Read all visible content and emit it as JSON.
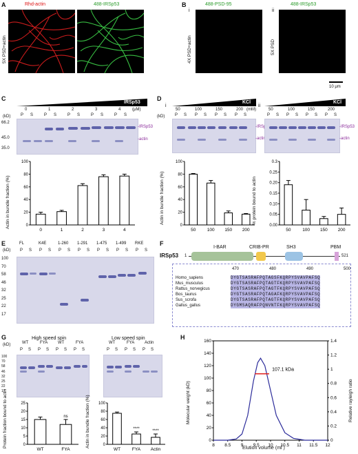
{
  "panels": {
    "A": {
      "letter": "A",
      "label_red": "Rhd-actin",
      "label_green": "488-IRSp53",
      "side": "5X PSD+actin"
    },
    "B": {
      "letter": "B",
      "i": "i",
      "ii": "ii",
      "label_i": "488-PSD-95",
      "label_ii": "488-IRSp53",
      "side_i": "4X PSD+actin",
      "side_ii": "5X PSD",
      "scale": "10 μm"
    },
    "C": {
      "letter": "C",
      "kd": "(kD)",
      "markers": [
        "66.2",
        "45.0",
        "35.0"
      ],
      "conc": [
        "0",
        "1",
        "2",
        "3",
        "4"
      ],
      "unit": "(μM)",
      "wedge": "IRSp53",
      "ps": [
        "P",
        "S"
      ],
      "band_top": "-IRSp53",
      "band_bot": "-actin",
      "ylabel": "Actin in bundle fraction (%)",
      "yticks": [
        "0",
        "20",
        "40",
        "60",
        "80",
        "100"
      ]
    },
    "D": {
      "letter": "D",
      "i": "i",
      "ii": "ii",
      "kd": "(kD)",
      "markers": [
        "66.2",
        "45.0",
        "35.0"
      ],
      "conc": [
        "50",
        "100",
        "150",
        "200"
      ],
      "unit": "(mM)",
      "wedge": "KCl",
      "band_top": "-IRSp53",
      "band_bot": "-actin",
      "ylabel_i": "Actin in bundle fraction (%)",
      "ylabel_ii": "% protein bound to actin",
      "yticks_i": [
        "0",
        "20",
        "40",
        "60",
        "80",
        "100"
      ],
      "yticks_ii": [
        "0.00",
        "0.05",
        "0.10",
        "0.15",
        "0.20",
        "0.25",
        "0.3"
      ],
      "xcats": [
        "50",
        "100",
        "150",
        "200"
      ]
    },
    "E": {
      "letter": "E",
      "kd": "(kD)",
      "markers": [
        "100",
        "70",
        "58",
        "46",
        "32",
        "25",
        "22",
        "17"
      ],
      "lanes": [
        "FL",
        "K4E",
        "1-260",
        "1-291",
        "1-475",
        "1-499",
        "RKE"
      ]
    },
    "F": {
      "letter": "F",
      "protein": "IRSp53",
      "domains": [
        "I-BAR",
        "CRIB-PR",
        "SH3",
        "PBM"
      ],
      "start": "1",
      "end": "521",
      "positions": [
        "470",
        "480",
        "490",
        "500"
      ],
      "species": [
        "Homo_sapiens",
        "Mus_musculus",
        "Rattus_norvegicus",
        "Bos_taurus",
        "Sus_scrofa",
        "Gallus_gallus"
      ],
      "seqs": [
        "DYGTSASRAFPQTAGSFKQRPYSVAVPAFSQ",
        "DYGTSASRAFPQTAGTFKQRPYSVAVPAFSQ",
        "DYGTSASRAFPQTAGTFKQRPYSVAVPAFSQ",
        "DYGTSASRAFPQTAGAFKQRPYSVAVPAFSQ",
        "DYGTSASRAFPQTAGTFKQRPYSVAVPAFSQ",
        "DYGMSAQRAFPQNVNTFKQRPYSVAVPAFSQ"
      ]
    },
    "G": {
      "letter": "G",
      "high": "High speed spin",
      "low": "Low speed spin",
      "kd": "(kD)",
      "markers": [
        "100",
        "70",
        "58",
        "46",
        "32",
        "25",
        "22",
        "17"
      ],
      "high_lanes": [
        "WT",
        "FYA",
        "WT",
        "FYA"
      ],
      "low_lanes": [
        "WT",
        "FYA",
        "Actin"
      ],
      "ylabel_l": "Protein fraction bound to actin",
      "ylabel_r": "Actin in bundle fraction (%)",
      "ns": "ns",
      "stars": "****",
      "yticks_l": [
        "0",
        "5",
        "10",
        "15",
        "20",
        "25"
      ],
      "yticks_r": [
        "0",
        "20",
        "40",
        "60",
        "80",
        "100"
      ],
      "xl": [
        "WT",
        "FYA"
      ],
      "xr": [
        "WT",
        "FYA",
        "Actin"
      ]
    },
    "H": {
      "letter": "H",
      "peak": "107.1 kDa",
      "ylabel_l": "Molecular weight (kD)",
      "ylabel_r": "Relative rayleigh ratio",
      "xlabel": "Elution volume (ml )",
      "xticks": [
        "8",
        "8.5",
        "9",
        "9.5",
        "10",
        "10.5",
        "11",
        "11.5",
        "12"
      ],
      "yticks_l": [
        "0",
        "20",
        "40",
        "60",
        "80",
        "100",
        "120",
        "140",
        "160"
      ],
      "yticks_r": [
        "0",
        "0.2",
        "0.4",
        "0.6",
        "0.8",
        "1",
        "1.2",
        "1.4"
      ]
    }
  },
  "chart_data": [
    {
      "type": "bar",
      "panel": "C",
      "categories": [
        "0",
        "1",
        "2",
        "3",
        "4"
      ],
      "values": [
        17,
        21,
        62,
        76,
        77
      ],
      "errors": [
        3,
        2,
        3,
        3,
        3
      ],
      "ylabel": "Actin in bundle fraction (%)",
      "ylim": [
        0,
        100
      ]
    },
    {
      "type": "bar",
      "panel": "D-i",
      "categories": [
        "50",
        "100",
        "150",
        "200"
      ],
      "values": [
        80,
        66,
        19,
        17
      ],
      "errors": [
        1,
        4,
        3,
        1
      ],
      "ylabel": "Actin in bundle fraction (%)",
      "ylim": [
        0,
        100
      ]
    },
    {
      "type": "bar",
      "panel": "D-ii",
      "categories": [
        "50",
        "100",
        "150",
        "200"
      ],
      "values": [
        0.19,
        0.07,
        0.03,
        0.05
      ],
      "errors": [
        0.02,
        0.05,
        0.01,
        0.03
      ],
      "ylabel": "% protein bound to actin",
      "ylim": [
        0,
        0.3
      ]
    },
    {
      "type": "bar",
      "panel": "G-left",
      "categories": [
        "WT",
        "FYA"
      ],
      "values": [
        15,
        12
      ],
      "errors": [
        1.5,
        3
      ],
      "ylabel": "Protein fraction bound to actin",
      "ylim": [
        0,
        25
      ]
    },
    {
      "type": "bar",
      "panel": "G-right",
      "categories": [
        "WT",
        "FYA",
        "Actin"
      ],
      "values": [
        75,
        25,
        17
      ],
      "errors": [
        3,
        5,
        8
      ],
      "ylabel": "Actin in bundle fraction (%)",
      "ylim": [
        0,
        100
      ]
    },
    {
      "type": "line",
      "panel": "H",
      "xlabel": "Elution volume (ml )",
      "ylabel": "Molecular weight (kD)",
      "xlim": [
        8,
        12
      ],
      "ylim": [
        0,
        160
      ],
      "x": [
        8.0,
        8.5,
        8.8,
        9.0,
        9.2,
        9.4,
        9.55,
        9.65,
        9.8,
        10.0,
        10.2,
        10.5,
        10.8,
        11.2,
        12.0
      ],
      "y": [
        0,
        0,
        2,
        10,
        40,
        95,
        125,
        132,
        120,
        80,
        40,
        12,
        3,
        0,
        0
      ],
      "annotation": "107.1 kDa"
    }
  ]
}
